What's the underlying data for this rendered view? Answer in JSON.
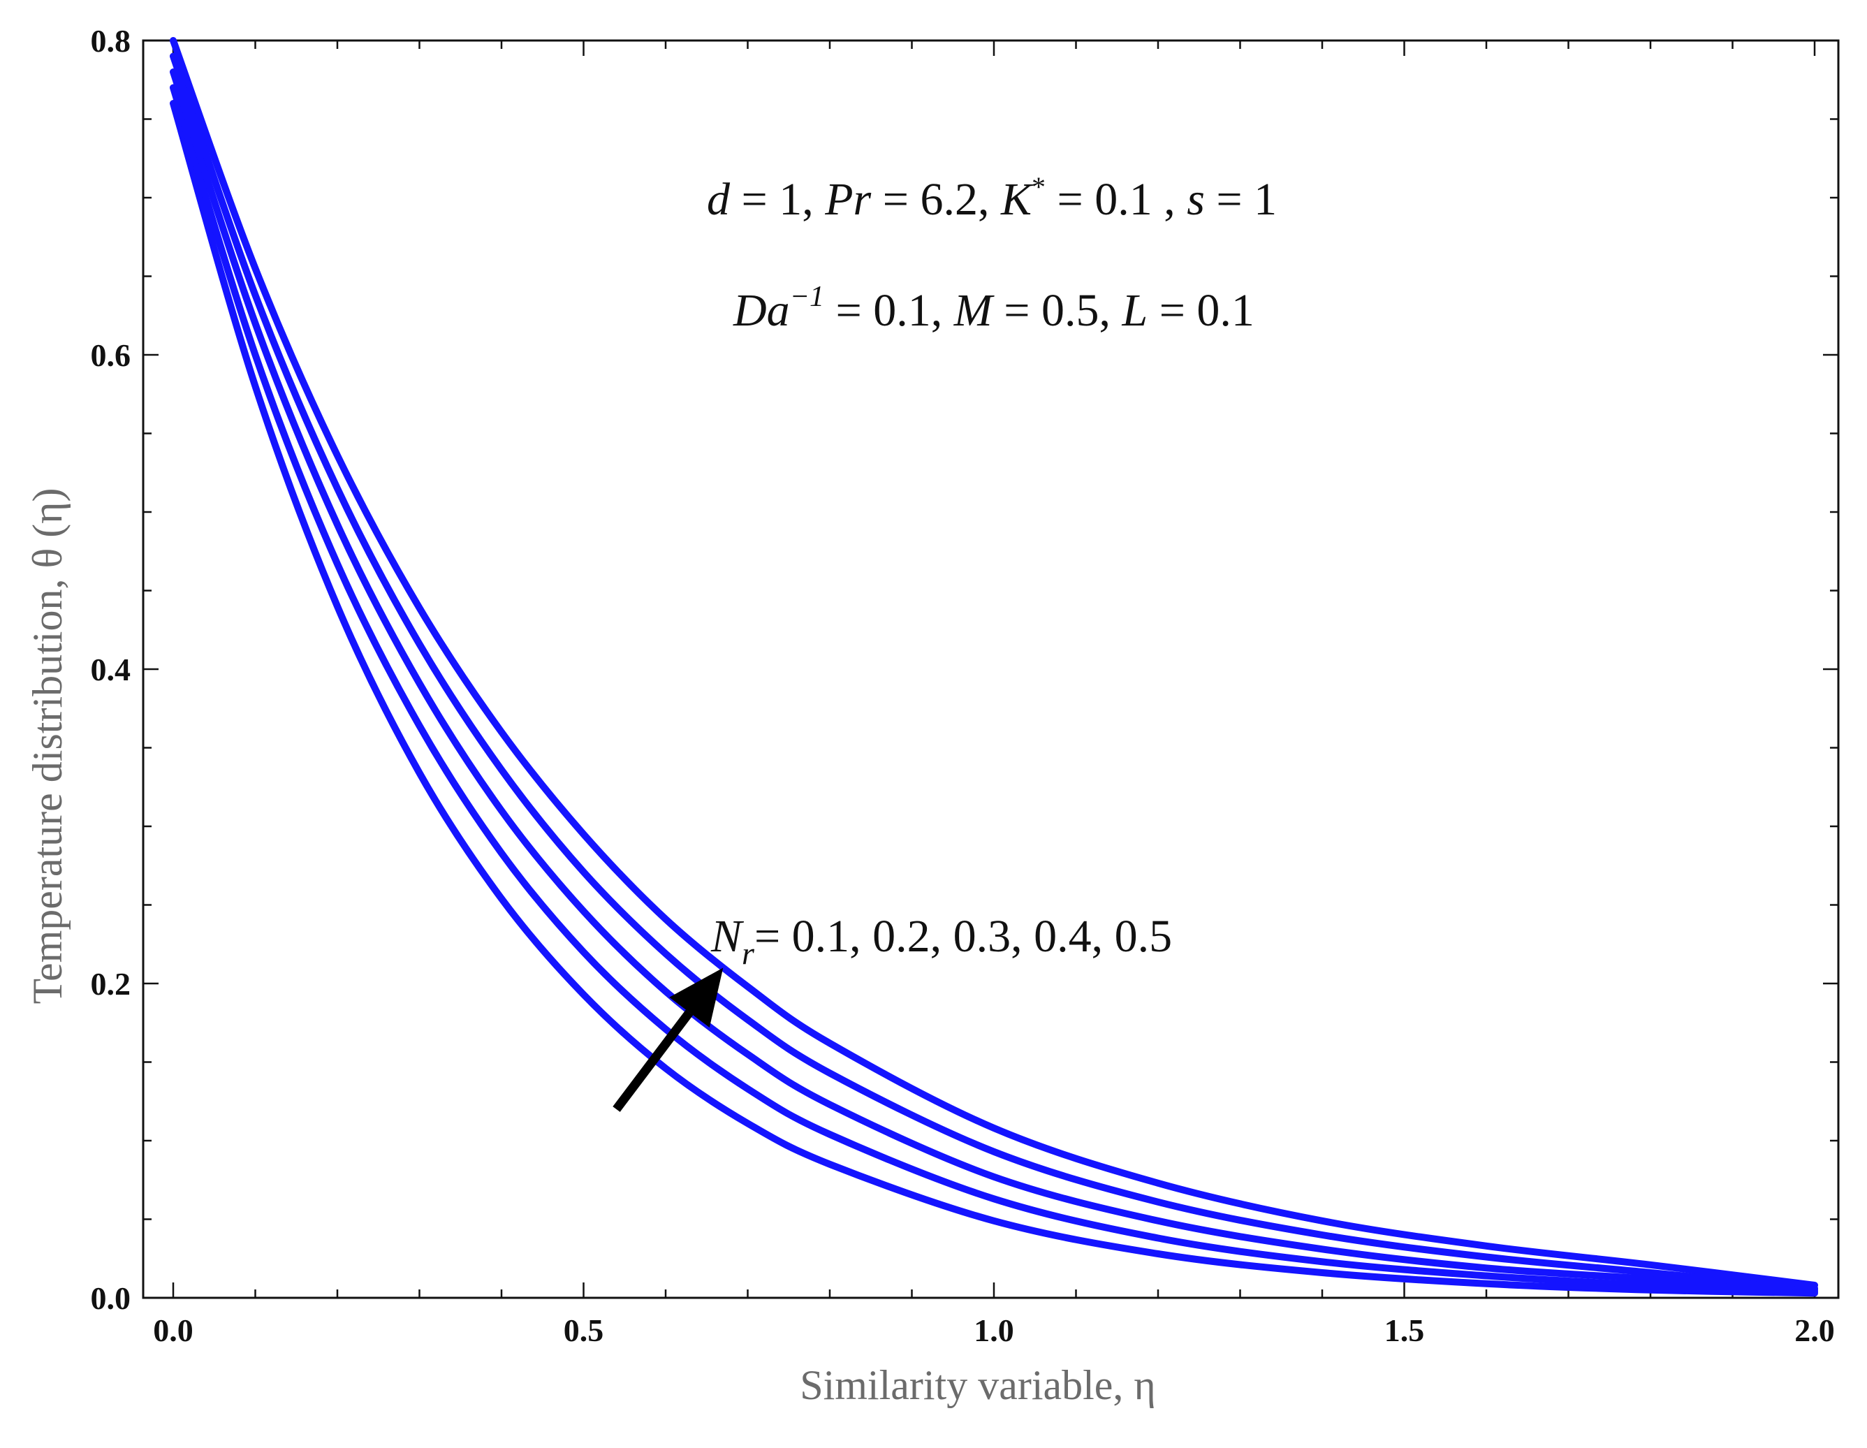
{
  "chart_data": {
    "type": "line",
    "title": "",
    "xlabel": "Similarity variable, η",
    "ylabel": "Temperature distribution, θ (η)",
    "xlim": [
      0,
      2
    ],
    "ylim": [
      0,
      0.8
    ],
    "x_ticks": [
      "0.0",
      "0.5",
      "1.0",
      "1.5",
      "2.0"
    ],
    "y_ticks": [
      "0.0",
      "0.2",
      "0.4",
      "0.6",
      "0.8"
    ],
    "grid": false,
    "line_color": "#1414ff",
    "arrow_color": "#000000",
    "series": [
      {
        "x": [
          0,
          0.1,
          0.2,
          0.3,
          0.4,
          0.5,
          0.6,
          0.7,
          0.8,
          1.0,
          1.2,
          1.4,
          1.6,
          1.8,
          2.0
        ],
        "values": [
          0.76,
          0.58,
          0.44,
          0.334,
          0.254,
          0.193,
          0.146,
          0.111,
          0.085,
          0.049,
          0.028,
          0.016,
          0.009,
          0.005,
          0.003
        ]
      },
      {
        "x": [
          0,
          0.1,
          0.2,
          0.3,
          0.4,
          0.5,
          0.6,
          0.7,
          0.8,
          1.0,
          1.2,
          1.4,
          1.6,
          1.8,
          2.0
        ],
        "values": [
          0.77,
          0.6,
          0.467,
          0.364,
          0.283,
          0.22,
          0.171,
          0.133,
          0.104,
          0.063,
          0.038,
          0.023,
          0.014,
          0.008,
          0.004
        ]
      },
      {
        "x": [
          0,
          0.1,
          0.2,
          0.3,
          0.4,
          0.5,
          0.6,
          0.7,
          0.8,
          1.0,
          1.2,
          1.4,
          1.6,
          1.8,
          2.0
        ],
        "values": [
          0.78,
          0.62,
          0.492,
          0.391,
          0.31,
          0.246,
          0.195,
          0.155,
          0.123,
          0.077,
          0.049,
          0.031,
          0.019,
          0.012,
          0.005
        ]
      },
      {
        "x": [
          0,
          0.1,
          0.2,
          0.3,
          0.4,
          0.5,
          0.6,
          0.7,
          0.8,
          1.0,
          1.2,
          1.4,
          1.6,
          1.8,
          2.0
        ],
        "values": [
          0.79,
          0.638,
          0.515,
          0.416,
          0.336,
          0.271,
          0.219,
          0.177,
          0.143,
          0.093,
          0.061,
          0.04,
          0.026,
          0.016,
          0.006
        ]
      },
      {
        "x": [
          0,
          0.1,
          0.2,
          0.3,
          0.4,
          0.5,
          0.6,
          0.7,
          0.8,
          1.0,
          1.2,
          1.4,
          1.6,
          1.8,
          2.0
        ],
        "values": [
          0.8,
          0.655,
          0.536,
          0.439,
          0.36,
          0.295,
          0.241,
          0.198,
          0.162,
          0.108,
          0.073,
          0.049,
          0.033,
          0.021,
          0.008
        ]
      }
    ],
    "arrow": {
      "from": [
        0.54,
        0.12
      ],
      "to": [
        0.67,
        0.21
      ]
    },
    "annotations": {
      "params_line1": {
        "d_sym": "d",
        "d_val": " = 1, ",
        "pr_sym": "Pr",
        "pr_val": " = 6.2, ",
        "k_sym": "K",
        "k_sup": "*",
        "k_val": " = 0.1 , ",
        "s_sym": "s",
        "s_val": " = 1"
      },
      "params_line2": {
        "da_sym": "Da",
        "da_sup": "−1",
        "da_val": " = 0.1, ",
        "m_sym": "M",
        "m_val": " = 0.5, ",
        "l_sym": "L",
        "l_val": " = 0.1"
      },
      "nr_label": {
        "sym": "N",
        "sub": "r",
        "val": "=  0.1, 0.2, 0.3, 0.4, 0.5"
      }
    }
  }
}
